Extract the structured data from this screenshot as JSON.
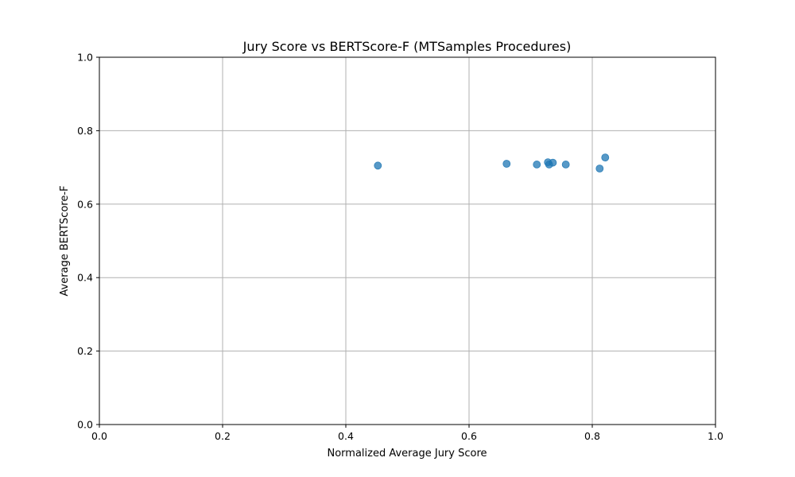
{
  "chart_data": {
    "type": "scatter",
    "title": "Jury Score vs BERTScore-F (MTSamples Procedures)",
    "xlabel": "Normalized Average Jury Score",
    "ylabel": "Average BERTScore-F",
    "xlim": [
      0.0,
      1.0
    ],
    "ylim": [
      0.0,
      1.0
    ],
    "xticks": [
      "0.0",
      "0.2",
      "0.4",
      "0.6",
      "0.8",
      "1.0"
    ],
    "yticks": [
      "0.0",
      "0.2",
      "0.4",
      "0.6",
      "0.8",
      "1.0"
    ],
    "grid": true,
    "marker_color": "#1f77b4",
    "points": [
      {
        "x": 0.452,
        "y": 0.705
      },
      {
        "x": 0.661,
        "y": 0.71
      },
      {
        "x": 0.71,
        "y": 0.708
      },
      {
        "x": 0.728,
        "y": 0.714
      },
      {
        "x": 0.73,
        "y": 0.708
      },
      {
        "x": 0.736,
        "y": 0.713
      },
      {
        "x": 0.757,
        "y": 0.708
      },
      {
        "x": 0.812,
        "y": 0.697
      },
      {
        "x": 0.821,
        "y": 0.727
      }
    ]
  }
}
